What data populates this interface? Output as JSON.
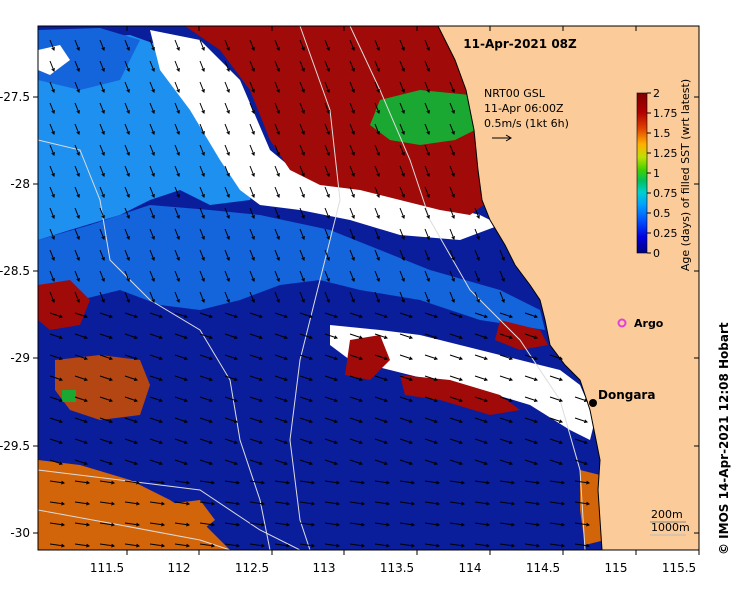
{
  "title": "11-Apr-2021 08Z",
  "colors": {
    "land": "#FBCB99",
    "deep_blue": "#0A1E9C",
    "mid_blue": "#1464DC",
    "light_blue": "#1E90F0",
    "white": "#FFFFFF",
    "dark_red": "#A00A08",
    "green": "#1AA832",
    "orange": "#D2640A",
    "brown": "#B44614",
    "argo_marker": "#E040E0"
  },
  "current_label": {
    "line1": "NRT00 GSL",
    "line2": "11-Apr 06:00Z",
    "line3": "0.5m/s (1kt 6h)"
  },
  "colorbar": {
    "title": "Age (days) of filled SST (wrt latest)",
    "ticks": [
      "2",
      "1.75",
      "1.5",
      "1.25",
      "1",
      "0.75",
      "0.5",
      "0.25",
      "0"
    ],
    "stops": [
      "#000080",
      "#0000E0",
      "#0050FF",
      "#00A0FF",
      "#00D0D0",
      "#00C060",
      "#40D000",
      "#C0E000",
      "#FFB000",
      "#E04000",
      "#B00000",
      "#800000"
    ]
  },
  "axes": {
    "x_ticks": [
      "111.5",
      "112",
      "112.5",
      "113",
      "113.5",
      "114",
      "114.5",
      "115",
      "115.5"
    ],
    "y_ticks": [
      "-27.5",
      "-28",
      "-28.5",
      "-29",
      "-29.5",
      "-30"
    ]
  },
  "places": {
    "argo": "Argo",
    "dongara": "Dongara"
  },
  "contour_legend": {
    "c200": "200m",
    "c1000": "1000m"
  },
  "credit": "© IMOS 14-Apr-2021 12:08 Hobart"
}
